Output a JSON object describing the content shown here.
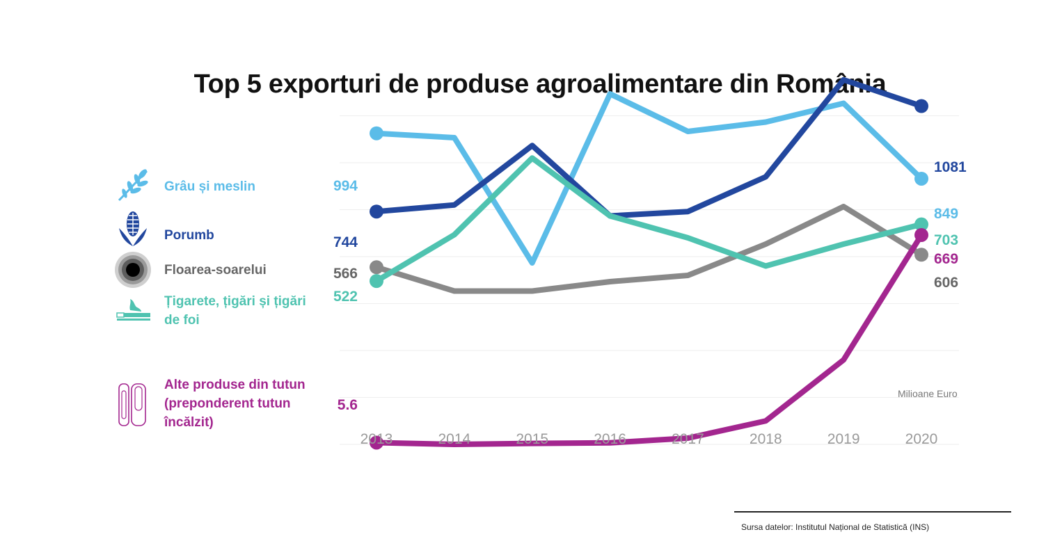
{
  "title": "Top 5 exporturi de produse agroalimentare din România",
  "unit_label": "Milioane Euro",
  "source": "Sursa datelor: Institutul Național de Statistică (INS)",
  "legend": [
    {
      "label": "Grâu și meslin",
      "icon": "wheat-icon",
      "color": "#5bbce8"
    },
    {
      "label": "Porumb",
      "icon": "corn-icon",
      "color": "#22479e"
    },
    {
      "label": "Floarea-soarelui",
      "icon": "sunflower-icon",
      "color": "#555555"
    },
    {
      "label_lines": [
        "Țigarete, țigări și țigări",
        "de foi"
      ],
      "icon": "cigarette-icon",
      "color": "#4fc3b0"
    },
    {
      "label_lines": [
        "Alte produse din tutun",
        "(preponderent tutun",
        "încălzit)"
      ],
      "icon": "heated-tobacco-icon",
      "color": "#a3268f"
    }
  ],
  "chart_data": {
    "type": "line",
    "x": [
      "2013",
      "2014",
      "2015",
      "2016",
      "2017",
      "2018",
      "2019",
      "2020"
    ],
    "title": "Top 5 exporturi de produse agroalimentare din România",
    "ylabel": "Milioane Euro",
    "ylim": [
      -80,
      1220
    ],
    "grid": true,
    "series": [
      {
        "name": "Grâu și meslin",
        "color": "#5bbce8",
        "values": [
          994,
          980,
          580,
          1120,
          1000,
          1030,
          1090,
          849
        ],
        "start_label": "994",
        "end_label": "849"
      },
      {
        "name": "Porumb",
        "color": "#22479e",
        "values": [
          744,
          765,
          955,
          730,
          744,
          855,
          1165,
          1081
        ],
        "start_label": "744",
        "end_label": "1081"
      },
      {
        "name": "Floarea-soarelui",
        "color": "#898989",
        "values": [
          566,
          490,
          490,
          520,
          540,
          640,
          760,
          606
        ],
        "start_label": "566",
        "end_label": "606"
      },
      {
        "name": "Țigarete, țigări și țigări de foi",
        "color": "#4fc3b0",
        "values": [
          522,
          670,
          915,
          730,
          660,
          570,
          640,
          703
        ],
        "start_label": "522",
        "end_label": "703"
      },
      {
        "name": "Alte produse din tutun (preponderent tutun încălzit)",
        "color": "#a3268f",
        "values": [
          5.6,
          0,
          3,
          5,
          20,
          75,
          270,
          669
        ],
        "start_label": "5.6",
        "end_label": "669"
      }
    ]
  }
}
